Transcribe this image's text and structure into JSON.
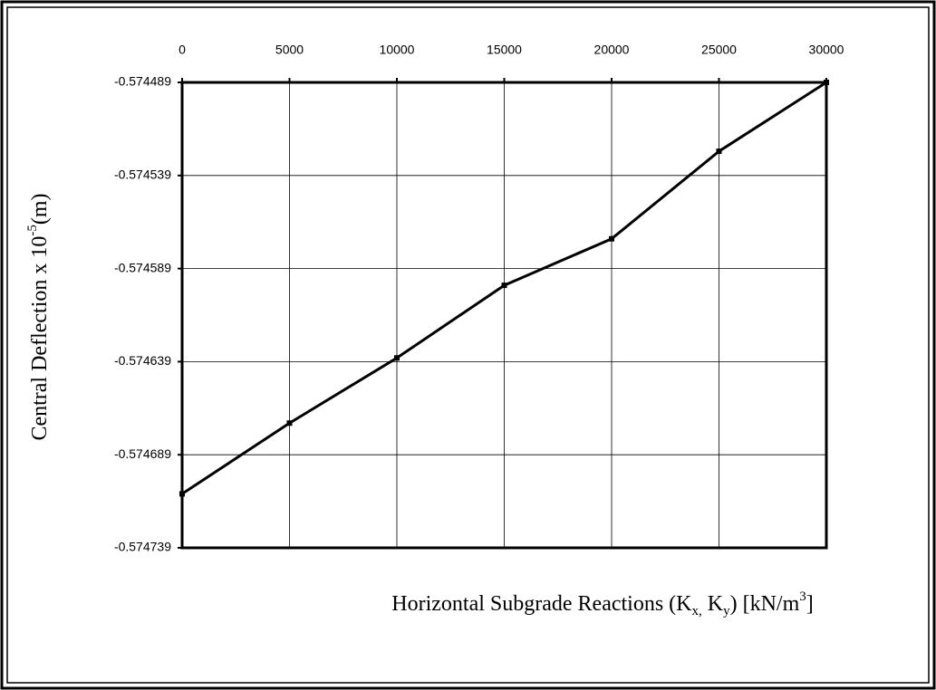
{
  "chart_data": {
    "type": "line",
    "y_label": [
      "Central Deflection x 10",
      "-5",
      "(m)"
    ],
    "x_label": [
      "Horizontal Subgrade Reactions (K",
      "x,",
      " K",
      "y",
      ") [kN/m",
      "3",
      "]"
    ],
    "x": [
      0,
      5000,
      10000,
      15000,
      20000,
      25000,
      30000
    ],
    "series": [
      {
        "color": "#000000",
        "values": [
          -0.57471,
          -0.574672,
          -0.574637,
          -0.574598,
          -0.574573,
          -0.574526,
          -0.574489
        ]
      }
    ],
    "xlim": [
      0,
      30000
    ],
    "xticks": [
      0,
      5000,
      10000,
      15000,
      20000,
      25000,
      30000
    ],
    "ylim": [
      -0.574739,
      -0.574489
    ],
    "yticks": [
      -0.574489,
      -0.574539,
      -0.574589,
      -0.574639,
      -0.574689,
      -0.574739
    ],
    "grid": true
  }
}
